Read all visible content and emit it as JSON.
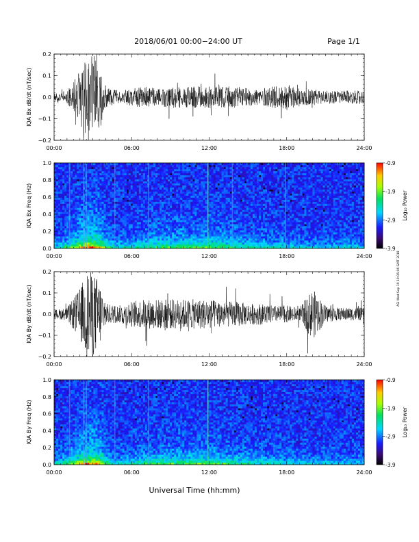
{
  "header": {
    "title": "2018/06/01   00:00−24:00 UT",
    "page": "Page 1/1"
  },
  "side_stamp": "ASI Wed Sep 19 19:06:06 GMT 2018",
  "xlabel": "Universal Time (hh:mm)",
  "time_ticks": [
    "00:00",
    "06:00",
    "12:00",
    "18:00",
    "24:00"
  ],
  "colorbar": {
    "label": "Log₁₀ Power",
    "ticks": [
      "-0.9",
      "-1.9",
      "-2.9",
      "-3.9"
    ],
    "range": [
      -3.9,
      -0.9
    ]
  },
  "chart_data": [
    {
      "type": "line",
      "ylabel": "IQA Bx dB/dt (nT/sec)",
      "xlim": [
        0,
        24
      ],
      "ylim": [
        -0.2,
        0.2
      ],
      "yticks": [
        "0.2",
        "0.1",
        "0.0",
        "−0.1",
        "−0.2"
      ],
      "x_hours": [
        0,
        1,
        2,
        2.5,
        3,
        3.5,
        4,
        5,
        6,
        7,
        8,
        9,
        10,
        11,
        12,
        13,
        14,
        15,
        16,
        17,
        18,
        19,
        20,
        21,
        22,
        23,
        24
      ],
      "amplitude": [
        0.02,
        0.03,
        0.12,
        0.2,
        0.2,
        0.16,
        0.05,
        0.03,
        0.04,
        0.05,
        0.04,
        0.05,
        0.05,
        0.05,
        0.05,
        0.05,
        0.05,
        0.04,
        0.04,
        0.05,
        0.06,
        0.04,
        0.04,
        0.03,
        0.03,
        0.03,
        0.03
      ]
    },
    {
      "type": "heatmap",
      "ylabel": "IQA Bx Freq (Hz)",
      "xlim": [
        0,
        24
      ],
      "ylim": [
        0.0,
        1.0
      ],
      "yticks": [
        "1.0",
        "0.8",
        "0.6",
        "0.4",
        "0.2",
        "0.0"
      ],
      "colorscale": "log10 power, -3.9 to -0.9",
      "broadband_bursts_hours": [
        1.2,
        2.3,
        2.5,
        4.7,
        7.3,
        11.9,
        13.8,
        17.9
      ]
    },
    {
      "type": "line",
      "ylabel": "IQA By dB/dt (nT/sec)",
      "xlim": [
        0,
        24
      ],
      "ylim": [
        -0.2,
        0.2
      ],
      "yticks": [
        "0.2",
        "0.1",
        "0.0",
        "−0.1",
        "−0.2"
      ],
      "x_hours": [
        0,
        1,
        2,
        2.5,
        3,
        3.5,
        4,
        5,
        6,
        7,
        8,
        9,
        10,
        11,
        12,
        13,
        14,
        15,
        16,
        17,
        18,
        19,
        20,
        21,
        22,
        23,
        24
      ],
      "amplitude": [
        0.02,
        0.03,
        0.12,
        0.2,
        0.2,
        0.16,
        0.05,
        0.04,
        0.06,
        0.07,
        0.07,
        0.07,
        0.07,
        0.07,
        0.07,
        0.06,
        0.06,
        0.05,
        0.05,
        0.04,
        0.04,
        0.03,
        0.12,
        0.04,
        0.03,
        0.03,
        0.03
      ]
    },
    {
      "type": "heatmap",
      "ylabel": "IQA By Freq (Hz)",
      "xlim": [
        0,
        24
      ],
      "ylim": [
        0.0,
        1.0
      ],
      "yticks": [
        "1.0",
        "0.8",
        "0.6",
        "0.4",
        "0.2",
        "0.0"
      ],
      "colorscale": "log10 power, -3.9 to -0.9",
      "broadband_bursts_hours": [
        1.2,
        2.3,
        2.5,
        4.7,
        7.3,
        11.9
      ]
    }
  ]
}
